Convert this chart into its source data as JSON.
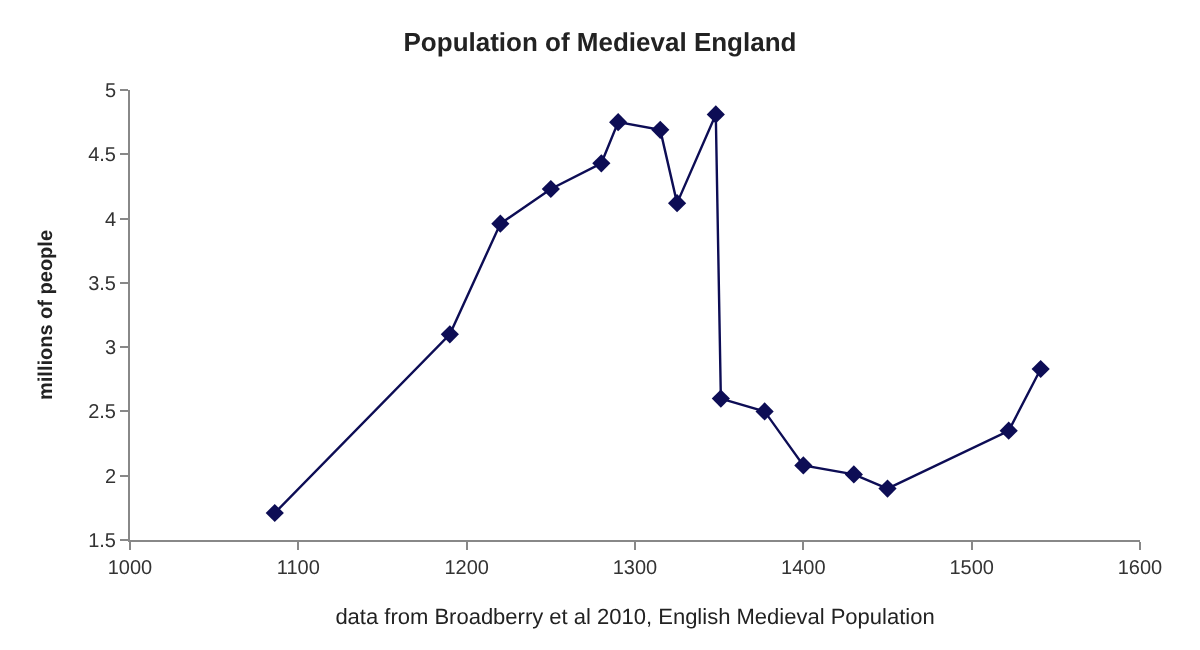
{
  "chart_data": {
    "type": "line",
    "title": "Population of Medieval England",
    "xlabel": "data from Broadberry et al 2010, English Medieval Population",
    "ylabel": "millions of people",
    "x": [
      1086,
      1190,
      1220,
      1250,
      1280,
      1290,
      1315,
      1325,
      1348,
      1351,
      1377,
      1400,
      1430,
      1450,
      1522,
      1541
    ],
    "series": [
      {
        "color": "#0d0d55",
        "values": [
          1.71,
          3.1,
          3.96,
          4.23,
          4.43,
          4.75,
          4.69,
          4.12,
          4.81,
          2.6,
          2.5,
          2.08,
          2.01,
          1.9,
          2.35,
          2.83
        ]
      }
    ],
    "xlim": [
      1000,
      1600
    ],
    "xticks": [
      1000,
      1100,
      1200,
      1300,
      1400,
      1500,
      1600
    ],
    "ylim": [
      1.5,
      5
    ],
    "yticks": [
      1.5,
      2,
      2.5,
      3,
      3.5,
      4,
      4.5,
      5
    ],
    "legend": false,
    "marker": "diamond",
    "line_style": "solid"
  }
}
